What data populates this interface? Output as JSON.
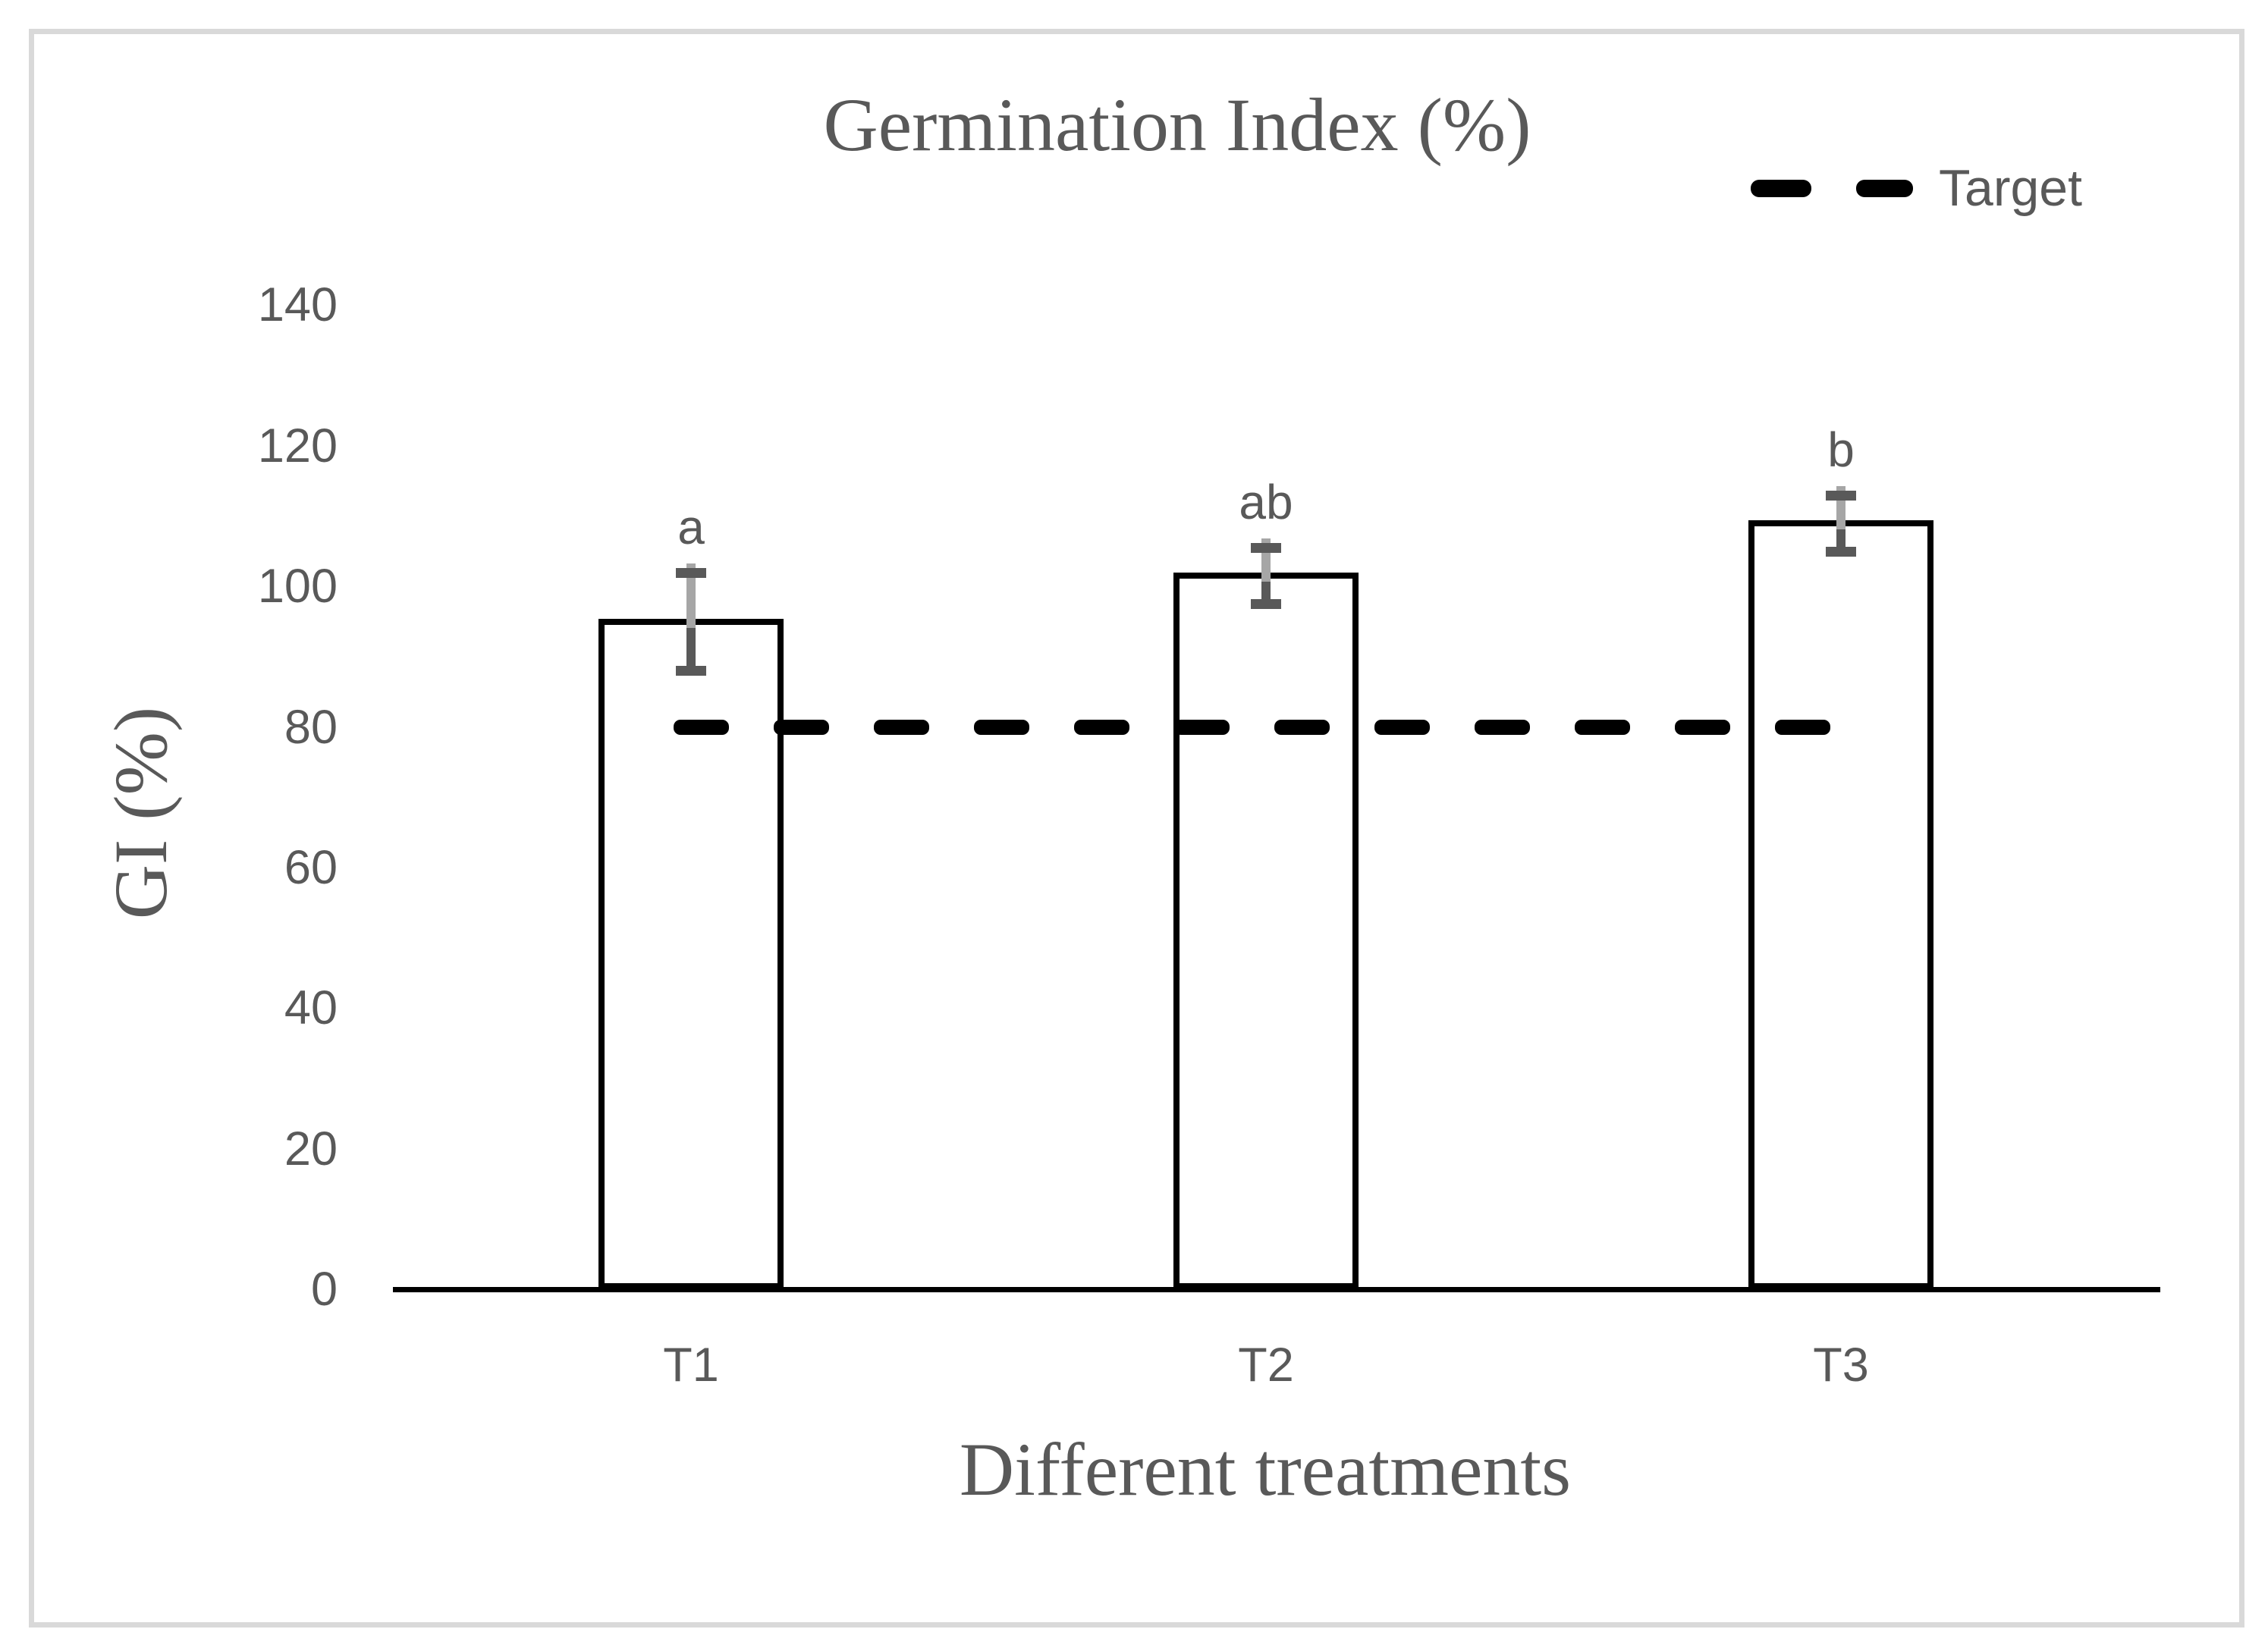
{
  "chart_data": {
    "type": "bar",
    "title": "Germination Index (%)",
    "xlabel": "Different treatments",
    "ylabel": "GI (%)",
    "categories": [
      "T1",
      "T2",
      "T3"
    ],
    "values": [
      95,
      101.5,
      109
    ],
    "errors": [
      7,
      4,
      4
    ],
    "sig_letters": [
      "a",
      "ab",
      "b"
    ],
    "yticks": [
      0,
      20,
      40,
      60,
      80,
      100,
      120,
      140
    ],
    "ylim": [
      0,
      140
    ],
    "grid": false,
    "legend": {
      "label": "Target",
      "position": "top-right"
    },
    "target_line": {
      "label": "Target",
      "value": 80
    },
    "bar_fill": "#ffffff",
    "bar_border": "#000000",
    "colors": {
      "text": "#595959",
      "error_dark": "#595959",
      "error_light": "#a6a6a6",
      "target": "#000000",
      "frame": "#d9d9d9"
    }
  }
}
